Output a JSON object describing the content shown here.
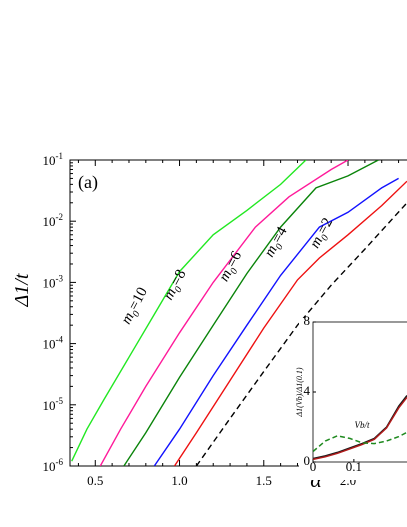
{
  "chart_data": [
    {
      "type": "line",
      "panel_label": "(a)",
      "xlabel": "α",
      "ylabel": "Δ1/t",
      "xscale": "linear",
      "yscale": "log",
      "xlim": [
        0.35,
        2.35
      ],
      "ylim": [
        1e-06,
        0.1
      ],
      "xticks": [
        0.5,
        1.0,
        1.5,
        2.0
      ],
      "xtick_labels": [
        "0.5",
        "1.0",
        "1.5",
        "2.0"
      ],
      "yticks": [
        1e-06,
        1e-05,
        0.0001,
        0.001,
        0.01,
        0.1
      ],
      "ytick_labels": [
        {
          "base": "10",
          "exp": "-6"
        },
        {
          "base": "10",
          "exp": "-5"
        },
        {
          "base": "10",
          "exp": "-4"
        },
        {
          "base": "10",
          "exp": "-3"
        },
        {
          "base": "10",
          "exp": "-2"
        },
        {
          "base": "10",
          "exp": "-1"
        }
      ],
      "series": [
        {
          "name": "m0=10",
          "color": "#22e822",
          "dash": false,
          "x": [
            0.36,
            0.45,
            0.55,
            0.7,
            0.85,
            1.0,
            1.2,
            1.4,
            1.6,
            1.75
          ],
          "y": [
            1.2e-06,
            4e-06,
            1.2e-05,
            6e-05,
            0.0003,
            0.0015,
            0.006,
            0.015,
            0.04,
            0.1
          ]
        },
        {
          "name": "m0=8",
          "color": "#ff1a9a",
          "dash": false,
          "x": [
            0.53,
            0.65,
            0.8,
            1.0,
            1.2,
            1.45,
            1.65,
            1.9,
            2.0
          ],
          "y": [
            1e-06,
            4e-06,
            2e-05,
            0.00015,
            0.001,
            0.008,
            0.025,
            0.07,
            0.1
          ]
        },
        {
          "name": "m0=6",
          "color": "#0a840a",
          "dash": false,
          "x": [
            0.67,
            0.8,
            1.0,
            1.2,
            1.4,
            1.6,
            1.81,
            2.0,
            2.18
          ],
          "y": [
            1e-06,
            3.5e-06,
            2.8e-05,
            0.0002,
            0.0014,
            0.008,
            0.035,
            0.055,
            0.1
          ]
        },
        {
          "name": "m0=4",
          "color": "#1212ff",
          "dash": false,
          "x": [
            0.85,
            1.0,
            1.2,
            1.4,
            1.6,
            1.83,
            2.0,
            2.2,
            2.3
          ],
          "y": [
            1e-06,
            4e-06,
            3e-05,
            0.0002,
            0.0013,
            0.008,
            0.014,
            0.035,
            0.05
          ]
        },
        {
          "name": "m0=2",
          "color": "#ee1111",
          "dash": false,
          "x": [
            0.97,
            1.1,
            1.3,
            1.5,
            1.7,
            1.83,
            2.0,
            2.2,
            2.35
          ],
          "y": [
            1e-06,
            3.5e-06,
            2.5e-05,
            0.00018,
            0.0011,
            0.0025,
            0.006,
            0.018,
            0.045
          ]
        },
        {
          "name": "",
          "color": "#000000",
          "dash": true,
          "x": [
            1.1,
            1.3,
            1.5,
            1.7,
            1.9,
            2.1,
            2.35
          ],
          "y": [
            1e-06,
            6e-06,
            3.5e-05,
            0.0002,
            0.0009,
            0.0035,
            0.02
          ]
        }
      ],
      "annotations": [
        {
          "text": "m",
          "sub": "0",
          "rest": "=10",
          "color": "#000000",
          "x": 0.7,
          "y": 0.0002
        },
        {
          "text": "m",
          "sub": "0",
          "rest": "=8",
          "color": "#000000",
          "x": 0.95,
          "y": 0.0005
        },
        {
          "text": "m",
          "sub": "0",
          "rest": "=6",
          "color": "#000000",
          "x": 1.28,
          "y": 0.001
        },
        {
          "text": "m",
          "sub": "0",
          "rest": "=4",
          "color": "#000000",
          "x": 1.55,
          "y": 0.0025
        },
        {
          "text": "m",
          "sub": "0",
          "rest": "=2",
          "color": "#000000",
          "x": 1.82,
          "y": 0.0035
        }
      ]
    },
    {
      "type": "line",
      "role": "inset",
      "xlabel": "Vb/t",
      "ylabel": "Δ1(Vb)/Δ1(0.1)",
      "xlim": [
        0,
        0.23
      ],
      "ylim": [
        0,
        8
      ],
      "xticks": [
        0,
        0.1
      ],
      "xtick_labels": [
        "0",
        "0.1"
      ],
      "yticks": [
        0,
        4,
        8
      ],
      "ytick_labels": [
        "0",
        "4",
        "8"
      ],
      "series": [
        {
          "name": "",
          "color": "#1a1a1a",
          "dash": false,
          "x": [
            0,
            0.03,
            0.06,
            0.09,
            0.12,
            0.15,
            0.18,
            0.21,
            0.23
          ],
          "y": [
            0.2,
            0.35,
            0.55,
            0.8,
            1.05,
            1.35,
            2.0,
            3.2,
            3.8
          ]
        },
        {
          "name": "",
          "color": "#b01a1a",
          "dash": false,
          "x": [
            0,
            0.03,
            0.06,
            0.09,
            0.12,
            0.15,
            0.18,
            0.21,
            0.23
          ],
          "y": [
            0.15,
            0.3,
            0.5,
            0.75,
            1.0,
            1.3,
            1.95,
            3.1,
            3.7
          ]
        },
        {
          "name": "",
          "color": "#1f8a1f",
          "dash": true,
          "x": [
            0,
            0.03,
            0.06,
            0.09,
            0.12,
            0.15,
            0.18,
            0.21,
            0.23
          ],
          "y": [
            0.6,
            1.2,
            1.5,
            1.35,
            1.1,
            1.05,
            1.2,
            1.45,
            1.7
          ]
        }
      ]
    }
  ]
}
